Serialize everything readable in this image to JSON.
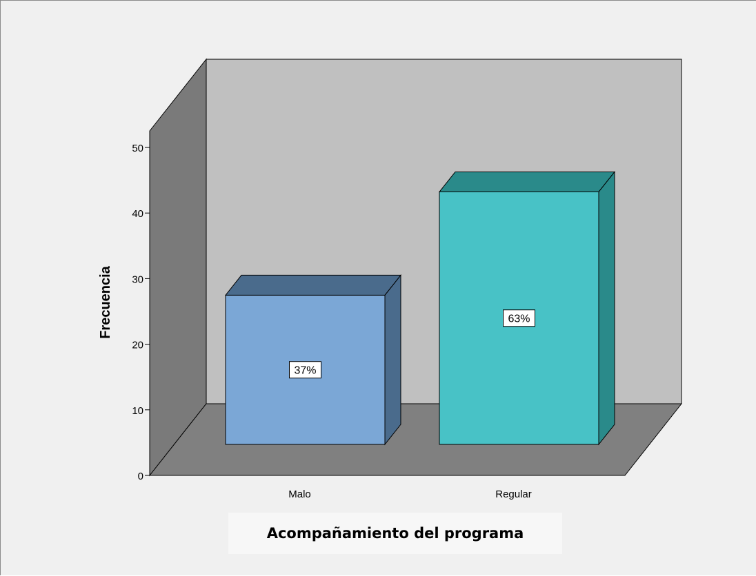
{
  "chart_data": {
    "type": "bar",
    "categories": [
      "Malo",
      "Regular"
    ],
    "values": [
      26,
      44
    ],
    "data_labels": [
      "37%",
      "63%"
    ],
    "xlabel": "Acompañamiento del programa",
    "ylabel": "Frecuencia",
    "ylim": [
      0,
      50
    ],
    "yticks": [
      0,
      10,
      20,
      30,
      40,
      50
    ],
    "grid": false,
    "legend": "none",
    "style": "3d",
    "colors": {
      "bars": [
        {
          "front": "#7ba7d6",
          "top": "#4a6b8c",
          "side": "#4a6b8c"
        },
        {
          "front": "#48c2c6",
          "top": "#2a8a8a",
          "side": "#2a8a8a"
        }
      ],
      "back_wall": "#c0c0c0",
      "side_wall": "#7a7a7a",
      "floor": "#808080",
      "background": "#f0f0f0"
    }
  }
}
